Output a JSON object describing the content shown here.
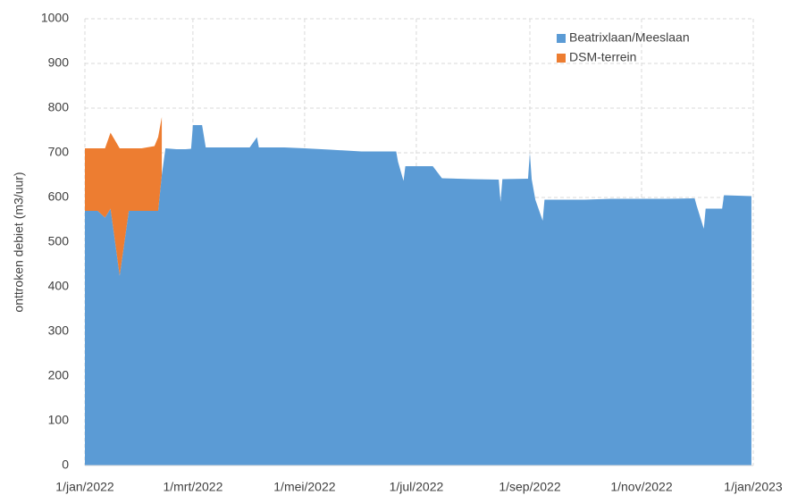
{
  "chart_data": {
    "type": "stacked-area",
    "y_label": "onttroken debiet (m3/uur)",
    "x": [
      "2022-01-01",
      "2022-01-08",
      "2022-01-12",
      "2022-01-15",
      "2022-01-20",
      "2022-01-25",
      "2022-02-01",
      "2022-02-08",
      "2022-02-10",
      "2022-02-12",
      "2022-02-14",
      "2022-02-20",
      "2022-02-25",
      "2022-02-28",
      "2022-03-01",
      "2022-03-06",
      "2022-03-08",
      "2022-03-20",
      "2022-04-01",
      "2022-04-05",
      "2022-04-06",
      "2022-04-20",
      "2022-05-01",
      "2022-05-15",
      "2022-06-01",
      "2022-06-20",
      "2022-06-21",
      "2022-06-24",
      "2022-06-25",
      "2022-07-10",
      "2022-07-15",
      "2022-08-01",
      "2022-08-15",
      "2022-08-16",
      "2022-08-17",
      "2022-08-31",
      "2022-09-01",
      "2022-09-02",
      "2022-09-04",
      "2022-09-08",
      "2022-09-09",
      "2022-10-01",
      "2022-10-15",
      "2022-11-01",
      "2022-11-15",
      "2022-11-30",
      "2022-12-01",
      "2022-12-05",
      "2022-12-06",
      "2022-12-15",
      "2022-12-16",
      "2022-12-31"
    ],
    "series": [
      {
        "name": "Beatrixlaan/Meeslaan",
        "color": "#5b9bd5",
        "values": [
          570,
          570,
          555,
          575,
          425,
          570,
          570,
          570,
          570,
          650,
          710,
          708,
          708,
          709,
          762,
          762,
          712,
          712,
          712,
          735,
          712,
          712,
          710,
          707,
          703,
          703,
          680,
          637,
          670,
          670,
          643,
          641,
          640,
          590,
          641,
          642,
          700,
          641,
          595,
          548,
          595,
          595,
          597,
          597,
          597,
          598,
          583,
          530,
          575,
          575,
          605,
          603
        ]
      },
      {
        "name": "DSM-terrein",
        "color": "#ed7d31",
        "values": [
          140,
          140,
          155,
          170,
          285,
          140,
          140,
          145,
          165,
          130,
          null,
          null,
          null,
          null,
          null,
          null,
          null,
          null,
          null,
          null,
          null,
          null,
          null,
          null,
          null,
          null,
          null,
          null,
          null,
          null,
          null,
          null,
          null,
          null,
          null,
          null,
          null,
          null,
          null,
          null,
          null,
          null,
          null,
          null,
          null,
          null,
          null,
          null,
          null,
          null,
          null,
          null
        ]
      }
    ],
    "xlim": [
      "2022-01-01",
      "2023-01-01"
    ],
    "xticks": [
      {
        "value": "2022-01-01",
        "label": "1/jan/2022"
      },
      {
        "value": "2022-03-01",
        "label": "1/mrt/2022"
      },
      {
        "value": "2022-05-01",
        "label": "1/mei/2022"
      },
      {
        "value": "2022-07-01",
        "label": "1/jul/2022"
      },
      {
        "value": "2022-09-01",
        "label": "1/sep/2022"
      },
      {
        "value": "2022-11-01",
        "label": "1/nov/2022"
      },
      {
        "value": "2023-01-01",
        "label": "1/jan/2023"
      }
    ],
    "ylim": [
      0,
      1000
    ],
    "yticks": [
      0,
      100,
      200,
      300,
      400,
      500,
      600,
      700,
      800,
      900,
      1000
    ],
    "grid": true,
    "legend": "top-right"
  }
}
